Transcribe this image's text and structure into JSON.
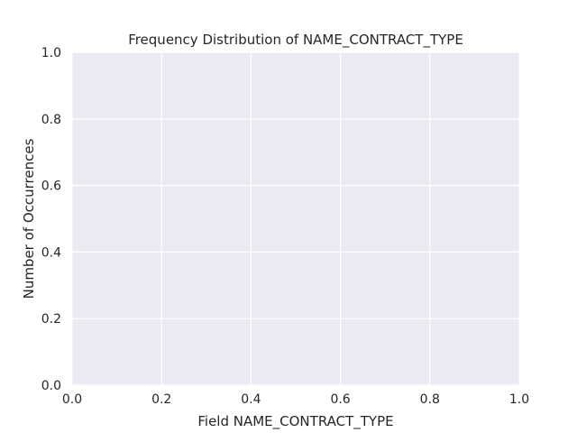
{
  "chart_data": {
    "type": "bar",
    "title": "Frequency Distribution of NAME_CONTRACT_TYPE",
    "xlabel": "Field NAME_CONTRACT_TYPE",
    "ylabel": "Number of Occurrences",
    "xlim": [
      0.0,
      1.0
    ],
    "ylim": [
      0.0,
      1.0
    ],
    "x_ticks": [
      "0.0",
      "0.2",
      "0.4",
      "0.6",
      "0.8",
      "1.0"
    ],
    "y_ticks": [
      "0.0",
      "0.2",
      "0.4",
      "0.6",
      "0.8",
      "1.0"
    ],
    "categories": [],
    "values": [],
    "grid": true,
    "colors": {
      "plot_background": "#EAEAF2",
      "grid": "#FFFFFF",
      "text": "#262626"
    }
  }
}
